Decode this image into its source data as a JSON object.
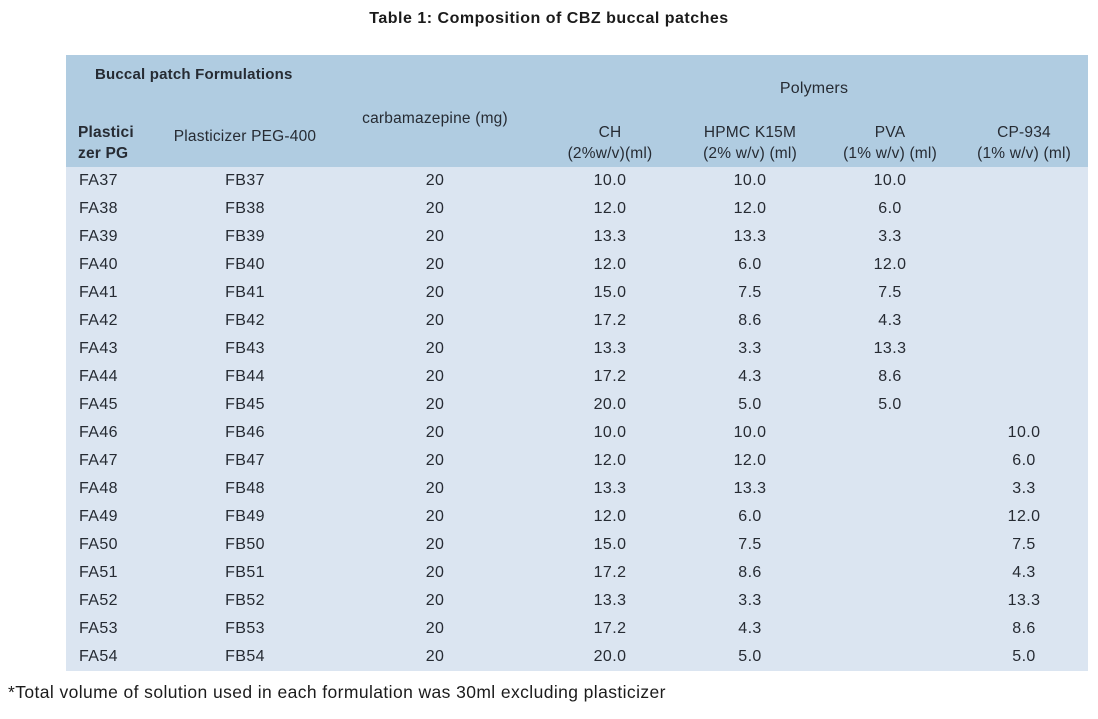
{
  "title": "Table 1: Composition of CBZ buccal patches",
  "footnote": "*Total volume of solution used in each formulation was 30ml excluding plasticizer",
  "table": {
    "group_headers": {
      "left": "Buccal patch Formulations",
      "right": "Polymers"
    },
    "columns": [
      {
        "label_lines": [
          "Plastici",
          "zer PG"
        ]
      },
      {
        "label_lines": [
          "Plasticizer PEG-400"
        ]
      },
      {
        "label_lines": [
          "carbamazepine (mg)"
        ]
      },
      {
        "label_lines": [
          "CH",
          "(2%w/v)(ml)"
        ]
      },
      {
        "label_lines": [
          "HPMC K15M",
          "(2% w/v) (ml)"
        ]
      },
      {
        "label_lines": [
          "PVA",
          "(1% w/v) (ml)"
        ]
      },
      {
        "label_lines": [
          "CP-934",
          "(1% w/v) (ml)"
        ]
      }
    ],
    "rows": [
      [
        "FA37",
        "FB37",
        "20",
        "10.0",
        "10.0",
        "10.0",
        ""
      ],
      [
        "FA38",
        "FB38",
        "20",
        "12.0",
        "12.0",
        "6.0",
        ""
      ],
      [
        "FA39",
        "FB39",
        "20",
        "13.3",
        "13.3",
        "3.3",
        ""
      ],
      [
        "FA40",
        "FB40",
        "20",
        "12.0",
        "6.0",
        "12.0",
        ""
      ],
      [
        "FA41",
        "FB41",
        "20",
        "15.0",
        "7.5",
        "7.5",
        ""
      ],
      [
        "FA42",
        "FB42",
        "20",
        "17.2",
        "8.6",
        "4.3",
        ""
      ],
      [
        "FA43",
        "FB43",
        "20",
        "13.3",
        "3.3",
        "13.3",
        ""
      ],
      [
        "FA44",
        "FB44",
        "20",
        "17.2",
        "4.3",
        "8.6",
        ""
      ],
      [
        "FA45",
        "FB45",
        "20",
        "20.0",
        "5.0",
        "5.0",
        ""
      ],
      [
        "FA46",
        "FB46",
        "20",
        "10.0",
        "10.0",
        "",
        "10.0"
      ],
      [
        "FA47",
        "FB47",
        "20",
        "12.0",
        "12.0",
        "",
        "6.0"
      ],
      [
        "FA48",
        "FB48",
        "20",
        "13.3",
        "13.3",
        "",
        "3.3"
      ],
      [
        "FA49",
        "FB49",
        "20",
        "12.0",
        "6.0",
        "",
        "12.0"
      ],
      [
        "FA50",
        "FB50",
        "20",
        "15.0",
        "7.5",
        "",
        "7.5"
      ],
      [
        "FA51",
        "FB51",
        "20",
        "17.2",
        "8.6",
        "",
        "4.3"
      ],
      [
        "FA52",
        "FB52",
        "20",
        "13.3",
        "3.3",
        "",
        "13.3"
      ],
      [
        "FA53",
        "FB53",
        "20",
        "17.2",
        "4.3",
        "",
        "8.6"
      ],
      [
        "FA54",
        "FB54",
        "20",
        "20.0",
        "5.0",
        "",
        "5.0"
      ]
    ],
    "colors": {
      "header_bg": "#b0cce1",
      "body_bg": "#dbe5f1",
      "text": "#262b33"
    }
  }
}
